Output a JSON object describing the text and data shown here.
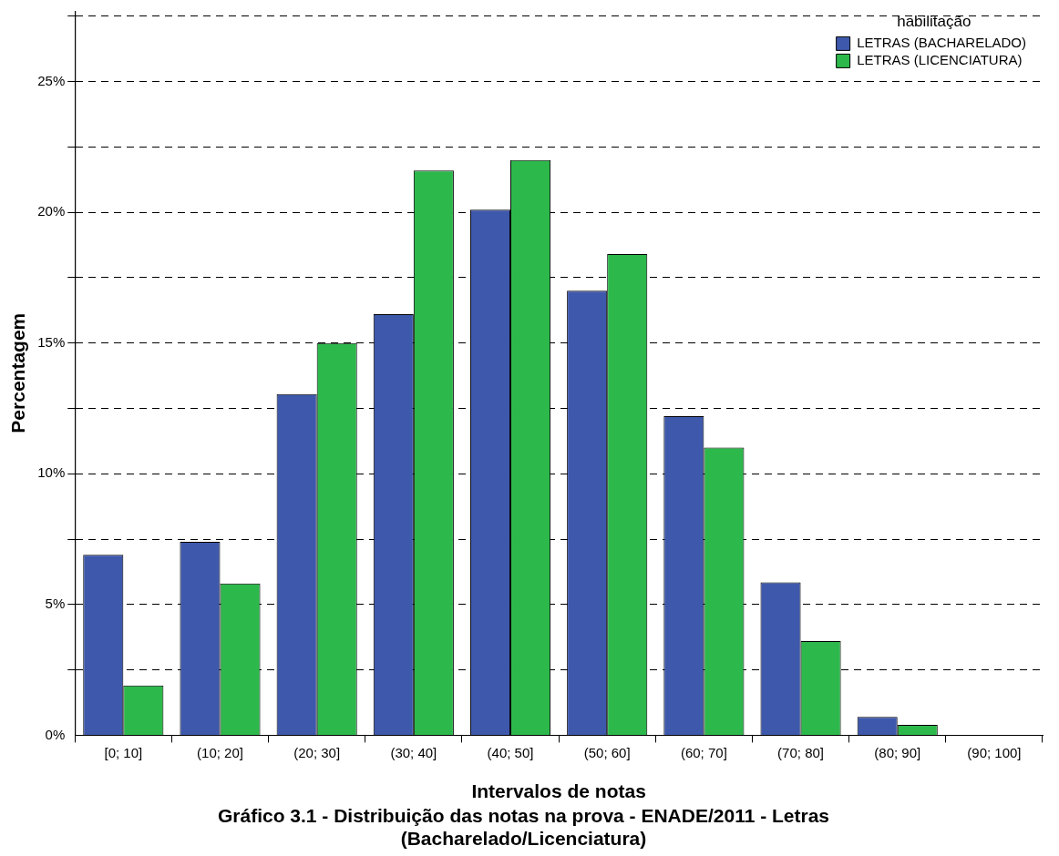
{
  "chart_data": {
    "type": "bar",
    "title": "Gráfico 3.1 - Distribuição das notas na prova - ENADE/2011 - Letras (Bacharelado/Licenciatura)",
    "xlabel": "Intervalos de notas",
    "ylabel": "Percentagem",
    "legend_title": "habilitação",
    "categories": [
      "[0; 10]",
      "(10; 20]",
      "(20; 30]",
      "(30; 40]",
      "(40; 50]",
      "(50; 60]",
      "(60; 70]",
      "(70; 80]",
      "(80; 90]",
      "(90; 100]"
    ],
    "series": [
      {
        "name": "LETRAS (BACHARELADO)",
        "color": "#3e58ac",
        "values": [
          6.9,
          7.4,
          13.05,
          16.1,
          20.1,
          17.0,
          12.2,
          5.85,
          0.7,
          0
        ]
      },
      {
        "name": "LETRAS (LICENCIATURA)",
        "color": "#2db84c",
        "values": [
          1.9,
          5.8,
          15.0,
          21.6,
          22.0,
          18.4,
          11.0,
          3.6,
          0.4,
          0
        ]
      }
    ],
    "ylim": [
      0,
      27.7
    ],
    "yticks": [
      {
        "value": 0,
        "label": "0%"
      },
      {
        "value": 2.5,
        "label": null
      },
      {
        "value": 5,
        "label": "5%"
      },
      {
        "value": 7.5,
        "label": null
      },
      {
        "value": 10,
        "label": "10%"
      },
      {
        "value": 12.5,
        "label": null
      },
      {
        "value": 15,
        "label": "15%"
      },
      {
        "value": 17.5,
        "label": null
      },
      {
        "value": 20,
        "label": "20%"
      },
      {
        "value": 22.5,
        "label": null
      },
      {
        "value": 25,
        "label": "25%"
      },
      {
        "value": 27.5,
        "label": null
      }
    ],
    "grid": "y",
    "legend": "top right"
  }
}
